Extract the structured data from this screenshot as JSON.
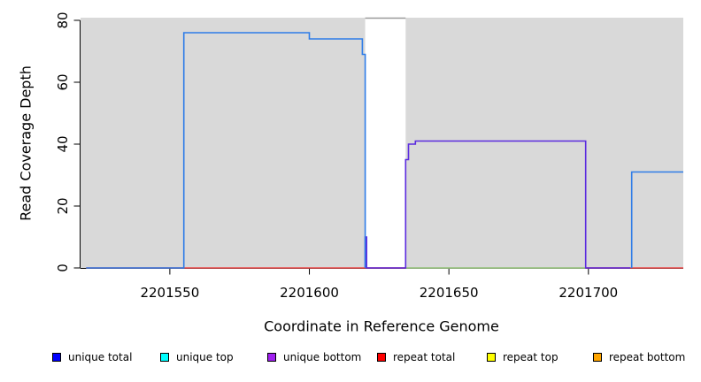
{
  "figure": {
    "xlabel": "Coordinate in Reference Genome",
    "ylabel": "Read Coverage Depth"
  },
  "legend": {
    "items": [
      {
        "label": "unique total",
        "color": "#0000FF"
      },
      {
        "label": "unique top",
        "color": "#00FFFF"
      },
      {
        "label": "unique bottom",
        "color": "#A020F0"
      },
      {
        "label": "repeat total",
        "color": "#FF0000"
      },
      {
        "label": "repeat top",
        "color": "#FFFF00"
      },
      {
        "label": "repeat bottom",
        "color": "#FFA500"
      }
    ]
  },
  "chart_data": {
    "type": "line",
    "title": "",
    "xlabel": "Coordinate in Reference Genome",
    "ylabel": "Read Coverage Depth",
    "xlim": [
      2201518,
      2201734
    ],
    "ylim": [
      0,
      80.857
    ],
    "x_ticks": [
      2201550,
      2201600,
      2201650,
      2201700
    ],
    "y_ticks": [
      0,
      20,
      40,
      60,
      80
    ],
    "grid": false,
    "legend_position": "bottom",
    "panel_bg": "#D9D9D9",
    "repeat_gap_region": {
      "x_start": 2201620,
      "x_end": 2201634.5,
      "fill": "#FFFFFF"
    },
    "clipped_segment": {
      "x_start": 2201620,
      "x_end": 2201634.5,
      "value": 81,
      "color": "#999999"
    },
    "series": [
      {
        "name": "repeat total baseline",
        "color": "#EE4B4B",
        "points": [
          [
            2201520,
            0
          ],
          [
            2201734,
            0
          ]
        ]
      },
      {
        "name": "green baseline",
        "color": "#8FD98F",
        "points": [
          [
            2201634.5,
            0
          ],
          [
            2201699,
            0
          ]
        ]
      },
      {
        "name": "unique bottom",
        "color": "#5B2BDF",
        "points": [
          [
            2201620,
            0
          ],
          [
            2201620,
            10
          ],
          [
            2201620.5,
            10
          ],
          [
            2201620.5,
            0
          ],
          [
            2201634.5,
            0
          ],
          [
            2201634.5,
            35
          ],
          [
            2201635.5,
            35
          ],
          [
            2201635.5,
            40
          ],
          [
            2201638,
            40
          ],
          [
            2201638,
            41
          ],
          [
            2201699,
            41
          ],
          [
            2201699,
            0
          ],
          [
            2201715,
            0
          ]
        ]
      },
      {
        "name": "unique total left",
        "color": "#2E7CE8",
        "points": [
          [
            2201520,
            0
          ],
          [
            2201555,
            0
          ],
          [
            2201555,
            76
          ],
          [
            2201600,
            76
          ],
          [
            2201600,
            74
          ],
          [
            2201619,
            74
          ],
          [
            2201619,
            69
          ],
          [
            2201620,
            69
          ],
          [
            2201620,
            0
          ]
        ]
      },
      {
        "name": "unique total right",
        "color": "#2E7CE8",
        "points": [
          [
            2201715.5,
            0
          ],
          [
            2201715.5,
            31
          ],
          [
            2201734,
            31
          ]
        ]
      }
    ]
  }
}
